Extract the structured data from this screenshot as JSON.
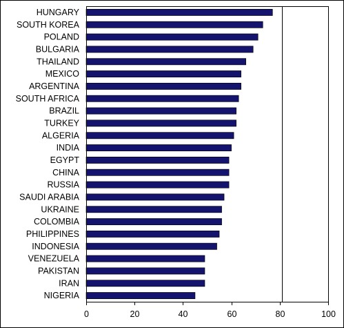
{
  "chart_data": {
    "type": "bar",
    "orientation": "horizontal",
    "title": "",
    "xlabel": "",
    "ylabel": "",
    "categories": [
      "HUNGARY",
      "SOUTH KOREA",
      "POLAND",
      "BULGARIA",
      "THAILAND",
      "MEXICO",
      "ARGENTINA",
      "SOUTH AFRICA",
      "BRAZIL",
      "TURKEY",
      "ALGERIA",
      "INDIA",
      "EGYPT",
      "CHINA",
      "RUSSIA",
      "SAUDI ARABIA",
      "UKRAINE",
      "COLOMBIA",
      "PHILIPPINES",
      "INDONESIA",
      "VENEZUELA",
      "PAKISTAN",
      "IRAN",
      "NIGERIA"
    ],
    "values": [
      77,
      73,
      71,
      69,
      66,
      64,
      64,
      63,
      62,
      62,
      61,
      60,
      59,
      59,
      59,
      57,
      56,
      56,
      55,
      54,
      49,
      49,
      49,
      45
    ],
    "xlim": [
      0,
      100
    ],
    "x_ticks": [
      "0",
      "20",
      "40",
      "60",
      "80",
      "100"
    ],
    "reference_line": 81,
    "bar_color": "#14146e",
    "grid": false
  }
}
